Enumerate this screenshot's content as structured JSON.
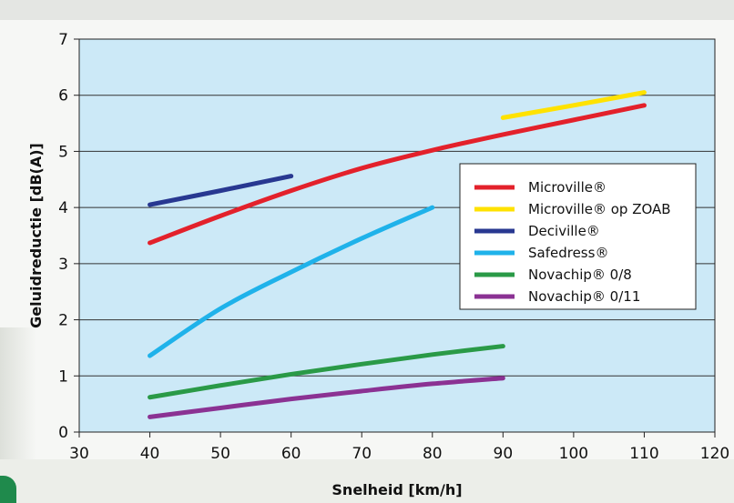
{
  "chart_data": {
    "type": "line",
    "xlabel": "Snelheid [km/h]",
    "ylabel": "Geluidreductie [dB(A)]",
    "xlim": [
      30,
      120
    ],
    "ylim": [
      0,
      7
    ],
    "x_ticks": [
      "30",
      "40",
      "50",
      "60",
      "70",
      "80",
      "90",
      "100",
      "110",
      "120"
    ],
    "y_ticks": [
      "0",
      "1",
      "2",
      "3",
      "4",
      "5",
      "6",
      "7"
    ],
    "grid": "horizontal",
    "legend_position": "center-right",
    "plot_background": "#cce9f7",
    "series": [
      {
        "name": "Microville®",
        "color": "#e3212b",
        "points": [
          [
            40,
            3.37
          ],
          [
            50,
            3.85
          ],
          [
            60,
            4.3
          ],
          [
            70,
            4.7
          ],
          [
            80,
            5.02
          ],
          [
            90,
            5.3
          ],
          [
            100,
            5.56
          ],
          [
            110,
            5.82
          ]
        ]
      },
      {
        "name": "Microville® op ZOAB",
        "color": "#ffe200",
        "points": [
          [
            90,
            5.6
          ],
          [
            100,
            5.82
          ],
          [
            110,
            6.05
          ]
        ]
      },
      {
        "name": "Deciville®",
        "color": "#283891",
        "points": [
          [
            40,
            4.05
          ],
          [
            50,
            4.3
          ],
          [
            60,
            4.56
          ]
        ]
      },
      {
        "name": "Safedress®",
        "color": "#1fb2ea",
        "points": [
          [
            40,
            1.36
          ],
          [
            50,
            2.2
          ],
          [
            60,
            2.85
          ],
          [
            70,
            3.45
          ],
          [
            80,
            4.0
          ]
        ]
      },
      {
        "name": "Novachip® 0/8",
        "color": "#2a9a47",
        "points": [
          [
            40,
            0.62
          ],
          [
            50,
            0.83
          ],
          [
            60,
            1.03
          ],
          [
            70,
            1.21
          ],
          [
            80,
            1.38
          ],
          [
            90,
            1.53
          ]
        ]
      },
      {
        "name": "Novachip® 0/11",
        "color": "#8b3293",
        "points": [
          [
            40,
            0.27
          ],
          [
            50,
            0.43
          ],
          [
            60,
            0.59
          ],
          [
            70,
            0.73
          ],
          [
            80,
            0.86
          ],
          [
            90,
            0.96
          ]
        ]
      }
    ]
  }
}
